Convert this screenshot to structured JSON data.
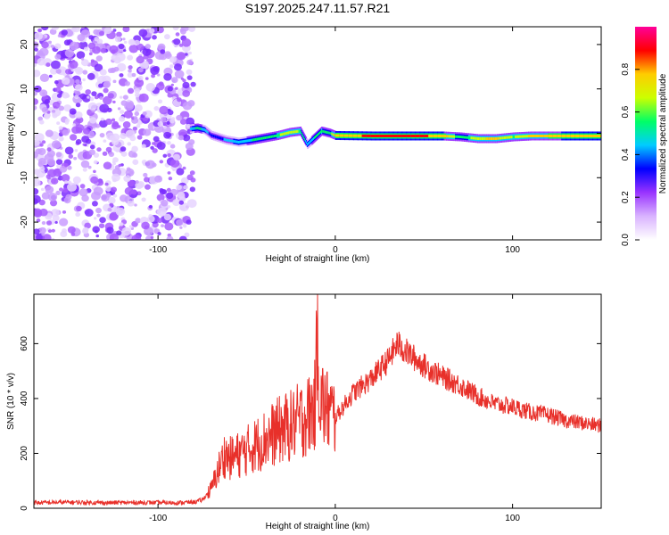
{
  "title": "S197.2025.247.11.57.R21",
  "chart_data": [
    {
      "type": "heatmap",
      "title": "S197.2025.247.11.57.R21",
      "xlabel": "Height of straight line (km)",
      "ylabel": "Frequency (Hz)",
      "xlim": [
        -170,
        150
      ],
      "ylim": [
        -24,
        24
      ],
      "xticks": [
        -100,
        0,
        100
      ],
      "yticks": [
        -20,
        -10,
        0,
        10,
        20
      ],
      "colorbar": {
        "label": "Normalized spectral amplitude",
        "range": [
          0.0,
          1.0
        ],
        "ticks": [
          "0.0",
          "0.2",
          "0.4",
          "0.6",
          "0.8"
        ],
        "colors": [
          "#ffffff",
          "#d9b3ff",
          "#9933ff",
          "#0000ff",
          "#00ccff",
          "#00ff66",
          "#ccff00",
          "#ffcc00",
          "#ff0000",
          "#ff0099"
        ]
      },
      "noise_region_x": [
        -170,
        -80
      ],
      "signal_track": [
        {
          "x": -82,
          "freq": 1.0,
          "amp": 0.4
        },
        {
          "x": -78,
          "freq": 1.2,
          "amp": 0.55
        },
        {
          "x": -74,
          "freq": 0.8,
          "amp": 0.45
        },
        {
          "x": -70,
          "freq": -0.5,
          "amp": 0.35
        },
        {
          "x": -62,
          "freq": -1.5,
          "amp": 0.4
        },
        {
          "x": -55,
          "freq": -2.0,
          "amp": 0.45
        },
        {
          "x": -47,
          "freq": -1.5,
          "amp": 0.5
        },
        {
          "x": -40,
          "freq": -1.0,
          "amp": 0.55
        },
        {
          "x": -33,
          "freq": -0.5,
          "amp": 0.6
        },
        {
          "x": -26,
          "freq": 0.2,
          "amp": 0.65
        },
        {
          "x": -20,
          "freq": 0.5,
          "amp": 0.6
        },
        {
          "x": -16,
          "freq": -2.5,
          "amp": 0.45
        },
        {
          "x": -12,
          "freq": -1.0,
          "amp": 0.5
        },
        {
          "x": -8,
          "freq": 0.5,
          "amp": 0.6
        },
        {
          "x": -3,
          "freq": 0.0,
          "amp": 0.55
        },
        {
          "x": 0,
          "freq": -0.5,
          "amp": 0.8
        },
        {
          "x": 20,
          "freq": -0.6,
          "amp": 0.85
        },
        {
          "x": 40,
          "freq": -0.6,
          "amp": 0.85
        },
        {
          "x": 60,
          "freq": -0.6,
          "amp": 0.82
        },
        {
          "x": 70,
          "freq": -0.8,
          "amp": 0.5
        },
        {
          "x": 80,
          "freq": -1.2,
          "amp": 0.7
        },
        {
          "x": 90,
          "freq": -1.2,
          "amp": 0.75
        },
        {
          "x": 100,
          "freq": -0.8,
          "amp": 0.6
        },
        {
          "x": 110,
          "freq": -0.6,
          "amp": 0.75
        },
        {
          "x": 130,
          "freq": -0.6,
          "amp": 0.8
        },
        {
          "x": 150,
          "freq": -0.6,
          "amp": 0.8
        }
      ]
    },
    {
      "type": "line",
      "xlabel": "Height of straight line (km)",
      "ylabel": "SNR (10 * v/v)",
      "xlim": [
        -170,
        150
      ],
      "ylim": [
        0,
        780
      ],
      "xticks": [
        -100,
        0,
        100
      ],
      "yticks": [
        0,
        200,
        400,
        600
      ],
      "color": "#e8302a",
      "series": [
        {
          "name": "SNR",
          "x": [
            -170,
            -150,
            -130,
            -110,
            -90,
            -80,
            -75,
            -70,
            -66,
            -62,
            -60,
            -56,
            -50,
            -45,
            -40,
            -35,
            -30,
            -25,
            -20,
            -15,
            -11,
            -10,
            -9,
            -5,
            0,
            10,
            20,
            30,
            35,
            40,
            50,
            60,
            70,
            80,
            90,
            100,
            110,
            120,
            130,
            140,
            150
          ],
          "y": [
            20,
            22,
            20,
            21,
            20,
            22,
            30,
            70,
            140,
            200,
            180,
            190,
            210,
            230,
            250,
            270,
            290,
            300,
            320,
            340,
            380,
            780,
            400,
            360,
            330,
            420,
            470,
            540,
            600,
            570,
            520,
            480,
            450,
            410,
            380,
            370,
            350,
            340,
            320,
            310,
            300
          ]
        }
      ]
    }
  ]
}
